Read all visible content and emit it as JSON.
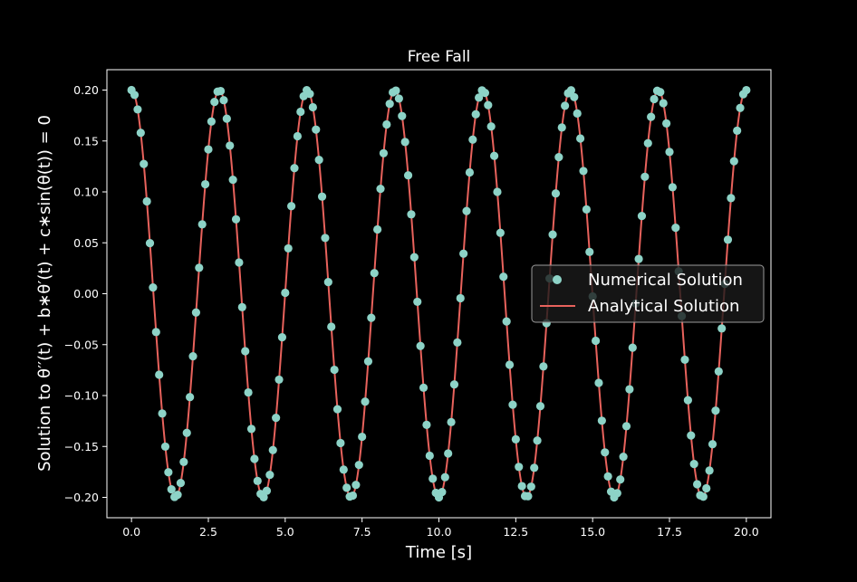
{
  "chart_data": {
    "type": "scatter",
    "title": "Free Fall",
    "xlabel": "Time [s]",
    "ylabel": "Solution to θ′′(t) + b∗θ′(t) + c∗sin(θ(t)) = 0",
    "xlim": [
      -0.8,
      20.8
    ],
    "ylim": [
      -0.22,
      0.22
    ],
    "grid": false,
    "legend_position": "center-right",
    "x_ticks": [
      0.0,
      2.5,
      5.0,
      7.5,
      10.0,
      12.5,
      15.0,
      17.5,
      20.0
    ],
    "x_tick_labels": [
      "0.0",
      "2.5",
      "5.0",
      "7.5",
      "10.0",
      "12.5",
      "15.0",
      "17.5",
      "20.0"
    ],
    "y_ticks": [
      0.2,
      0.15,
      0.1,
      0.05,
      0.0,
      -0.05,
      -0.1,
      -0.15,
      -0.2
    ],
    "y_tick_labels": [
      "0.20",
      "0.15",
      "0.10",
      "0.05",
      "0.00",
      "−0.05",
      "−0.10",
      "−0.15",
      "−0.20"
    ],
    "series": [
      {
        "name": "Numerical Solution",
        "kind": "scatter",
        "color": "#8dd3c7",
        "function": "0.2*cos(2.2*t)",
        "t_start": 0.0,
        "t_step": 0.1,
        "t_end": 20.0,
        "sampled_every": 2
      },
      {
        "name": "Analytical Solution",
        "kind": "line",
        "color": "#e8625c",
        "function": "0.2*cos(2.2*t)",
        "t_start": 0.0,
        "t_end": 20.0
      }
    ],
    "colors": {
      "background": "#000000",
      "axes": "#ffffff"
    }
  }
}
